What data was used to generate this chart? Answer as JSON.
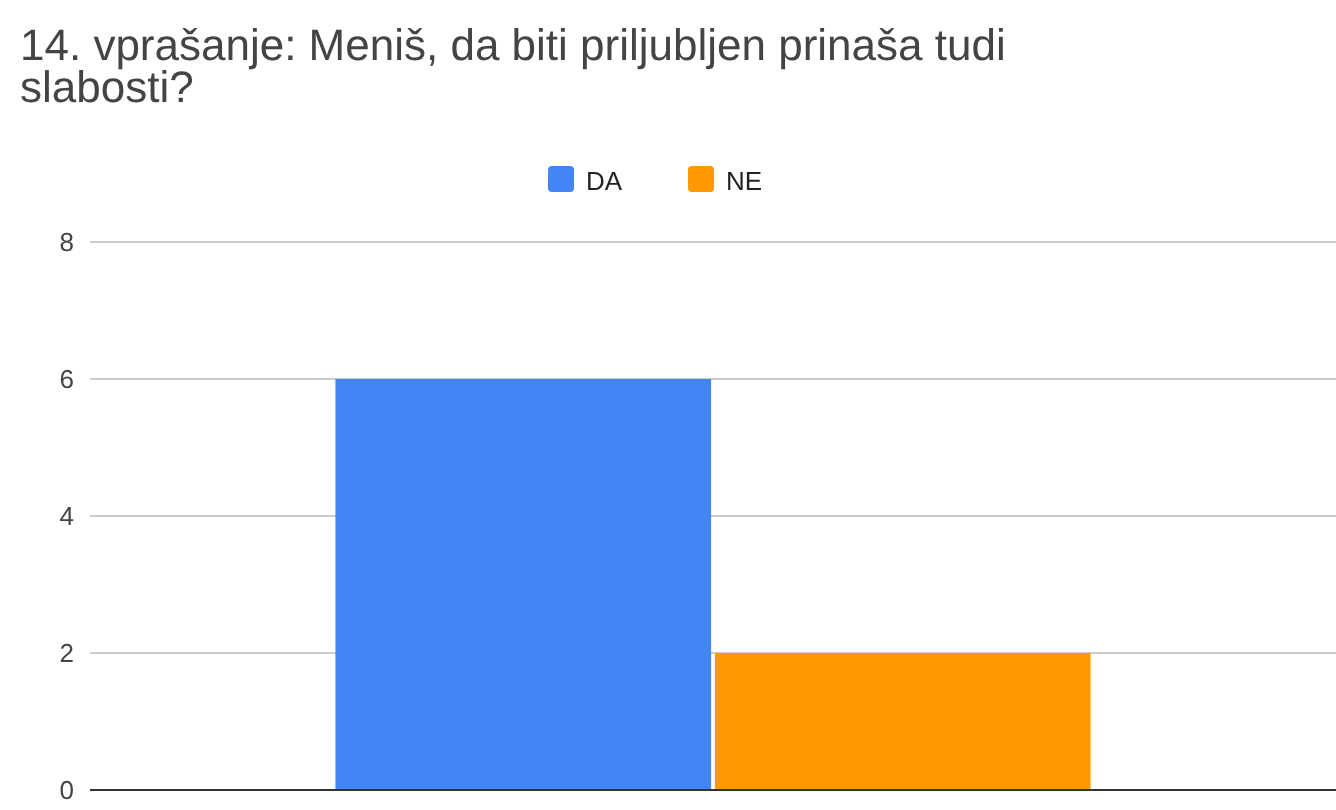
{
  "chart_data": {
    "type": "bar",
    "title": "14. vprašanje: Meniš, da biti priljubljen prinaša tudi slabosti?",
    "categories": [
      null
    ],
    "series": [
      {
        "name": "DA",
        "color": "#4285f4",
        "values": [
          6
        ]
      },
      {
        "name": "NE",
        "color": "#ff9900",
        "values": [
          2
        ]
      }
    ],
    "ylim": [
      0,
      8
    ],
    "yticks": [
      0,
      2,
      4,
      6,
      8
    ],
    "grid": "y",
    "legend": "top"
  }
}
